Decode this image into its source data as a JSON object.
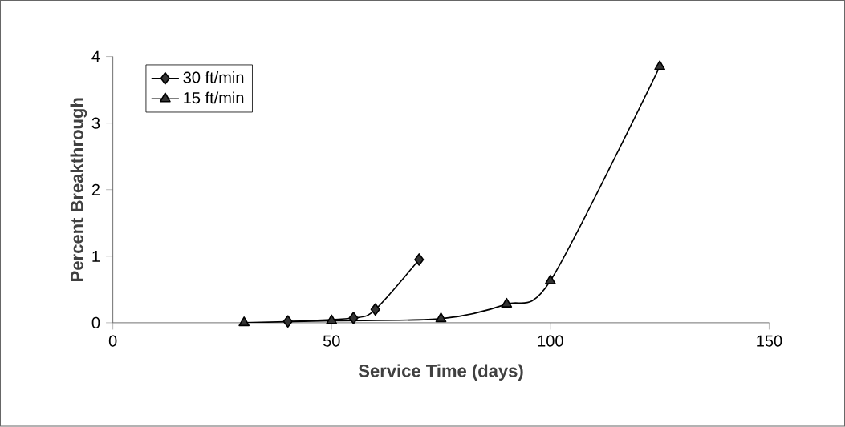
{
  "chart_data": {
    "type": "line",
    "xlabel": "Service Time (days)",
    "ylabel": "Percent Breakthrough",
    "xlim": [
      0,
      150
    ],
    "xticks": [
      0,
      50,
      100,
      150
    ],
    "ylim": [
      0,
      4
    ],
    "yticks": [
      0,
      1,
      2,
      3,
      4
    ],
    "legend": "top left",
    "series": [
      {
        "name": "30 ft/min",
        "color": "#333333",
        "marker": "diamond",
        "x": [
          40,
          55,
          60,
          70
        ],
        "values": [
          0.02,
          0.07,
          0.2,
          0.95
        ]
      },
      {
        "name": "15 ft/min",
        "color": "#333333",
        "marker": "triangle",
        "x": [
          30,
          50,
          75,
          90,
          100,
          125
        ],
        "values": [
          0,
          0.03,
          0.06,
          0.28,
          0.63,
          3.85
        ]
      }
    ]
  }
}
